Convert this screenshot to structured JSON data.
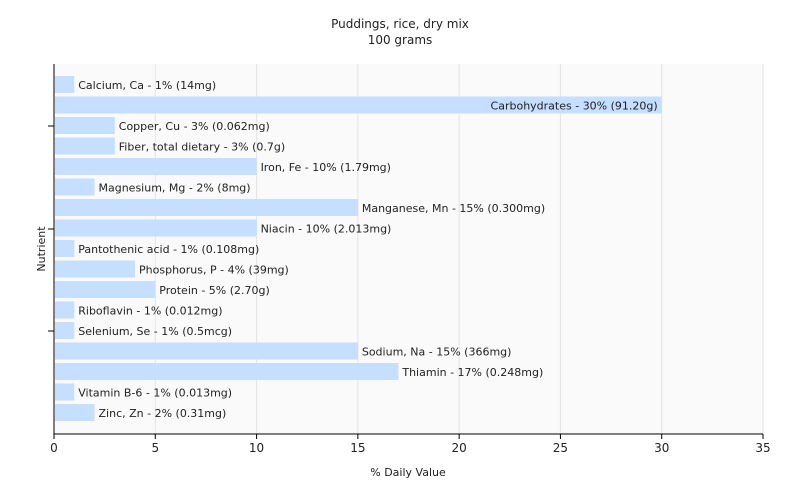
{
  "chart_data": {
    "type": "bar",
    "orientation": "horizontal",
    "title": "Puddings, rice, dry mix",
    "subtitle": "100 grams",
    "xlabel": "% Daily Value",
    "ylabel": "Nutrient",
    "xlim": [
      0,
      35
    ],
    "xticks": [
      0,
      5,
      10,
      15,
      20,
      25,
      30,
      35
    ],
    "grid": true,
    "legend": "none",
    "bar_color": "#c6deff",
    "categories": [
      "Calcium, Ca",
      "Carbohydrates",
      "Copper, Cu",
      "Fiber, total dietary",
      "Iron, Fe",
      "Magnesium, Mg",
      "Manganese, Mn",
      "Niacin",
      "Pantothenic acid",
      "Phosphorus, P",
      "Protein",
      "Riboflavin",
      "Selenium, Se",
      "Sodium, Na",
      "Thiamin",
      "Vitamin B-6",
      "Zinc, Zn"
    ],
    "values": [
      1,
      30,
      3,
      3,
      10,
      2,
      15,
      10,
      1,
      4,
      5,
      1,
      1,
      15,
      17,
      1,
      2
    ],
    "labels": [
      "Calcium, Ca - 1% (14mg)",
      "Carbohydrates - 30% (91.20g)",
      "Copper, Cu - 3% (0.062mg)",
      "Fiber, total dietary - 3% (0.7g)",
      "Iron, Fe - 10% (1.79mg)",
      "Magnesium, Mg - 2% (8mg)",
      "Manganese, Mn - 15% (0.300mg)",
      "Niacin - 10% (2.013mg)",
      "Pantothenic acid - 1% (0.108mg)",
      "Phosphorus, P - 4% (39mg)",
      "Protein - 5% (2.70g)",
      "Riboflavin - 1% (0.012mg)",
      "Selenium, Se - 1% (0.5mcg)",
      "Sodium, Na - 15% (366mg)",
      "Thiamin - 17% (0.248mg)",
      "Vitamin B-6 - 1% (0.013mg)",
      "Zinc, Zn - 2% (0.31mg)"
    ]
  }
}
